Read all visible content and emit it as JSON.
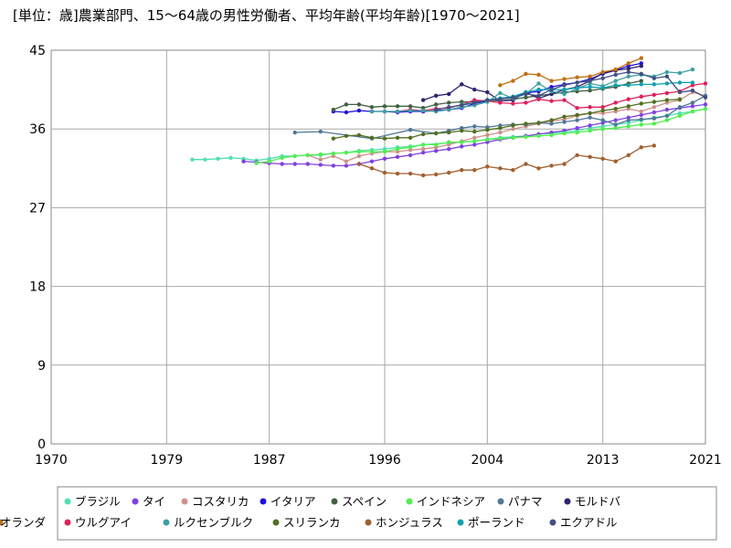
{
  "chart_data": {
    "type": "line",
    "title": "[単位：歳]農業部門、15～64歳の男性労働者、平均年齢(平均年齢)[1970～2021]",
    "xlabel": "",
    "ylabel": "",
    "xlim": [
      1970,
      2021
    ],
    "ylim": [
      0,
      45
    ],
    "x_ticks": [
      1970,
      1979,
      1987,
      1996,
      2004,
      2013,
      2021
    ],
    "y_ticks": [
      0,
      9,
      18,
      27,
      36,
      45
    ],
    "grid": true,
    "legend_position": "bottom",
    "series": [
      {
        "name": "ブラジル",
        "color": "#4fe0b0",
        "x": [
          1981,
          1982,
          1983,
          1984,
          1985,
          1986,
          1987,
          1988,
          1989,
          1990,
          1991,
          1992,
          1993,
          1994,
          1995,
          1996,
          1997,
          1998,
          1999,
          2001,
          2002,
          2003,
          2004,
          2005,
          2006,
          2007,
          2008,
          2009,
          2011,
          2012,
          2013,
          2014,
          2015,
          2016,
          2017,
          2018,
          2019,
          2020,
          2021
        ],
        "y": [
          32.5,
          32.5,
          32.6,
          32.7,
          32.6,
          32.4,
          32.6,
          32.9,
          32.9,
          33.0,
          33.0,
          33.2,
          33.3,
          33.5,
          33.6,
          33.7,
          33.9,
          34.0,
          34.2,
          34.4,
          34.5,
          34.6,
          34.8,
          35.0,
          35.1,
          35.2,
          35.4,
          35.5,
          35.8,
          36.1,
          36.3,
          36.5,
          36.7,
          37.0,
          37.3,
          37.5,
          37.8,
          38.0,
          38.3
        ]
      },
      {
        "name": "タイ",
        "color": "#8040e0",
        "x": [
          1985,
          1986,
          1987,
          1988,
          1989,
          1990,
          1991,
          1992,
          1993,
          1994,
          1995,
          1996,
          1997,
          1998,
          1999,
          2000,
          2001,
          2002,
          2003,
          2004,
          2005,
          2006,
          2007,
          2008,
          2009,
          2010,
          2011,
          2012,
          2013,
          2014,
          2015,
          2016,
          2017,
          2018,
          2019,
          2020,
          2021
        ],
        "y": [
          32.3,
          32.2,
          32.1,
          32.0,
          32.0,
          32.0,
          31.9,
          31.8,
          31.8,
          32.0,
          32.3,
          32.6,
          32.8,
          33.0,
          33.3,
          33.5,
          33.7,
          34.0,
          34.2,
          34.5,
          34.8,
          35.0,
          35.2,
          35.4,
          35.6,
          35.8,
          36.1,
          36.4,
          36.7,
          37.0,
          37.3,
          37.6,
          37.9,
          38.2,
          38.4,
          38.6,
          38.8
        ]
      },
      {
        "name": "コスタリカ",
        "color": "#d0908a",
        "x": [
          1990,
          1991,
          1992,
          1993,
          1994,
          1995,
          1996,
          1997,
          1998,
          1999,
          2000,
          2001,
          2002,
          2003,
          2004,
          2005,
          2006,
          2007,
          2008,
          2009,
          2010,
          2011,
          2012,
          2013,
          2014,
          2015,
          2016,
          2017,
          2018,
          2019,
          2020,
          2021
        ],
        "y": [
          33.0,
          32.5,
          32.9,
          32.3,
          32.9,
          33.2,
          33.4,
          33.4,
          33.6,
          33.7,
          33.9,
          34.2,
          34.6,
          35.0,
          35.3,
          35.6,
          36.0,
          36.3,
          36.6,
          36.9,
          37.1,
          37.5,
          37.8,
          37.8,
          38.0,
          38.3,
          38.0,
          38.5,
          39.0,
          39.3,
          40.2,
          39.8
        ]
      },
      {
        "name": "イタリア",
        "color": "#2010e0",
        "x": [
          1992,
          1993,
          1994,
          1995,
          1996,
          1997,
          1998,
          1999,
          2000,
          2001,
          2002,
          2003,
          2004,
          2005,
          2006,
          2007,
          2008,
          2009,
          2010,
          2011,
          2012,
          2013,
          2014,
          2015,
          2016
        ],
        "y": [
          38.0,
          37.9,
          38.1,
          38.0,
          38.0,
          37.9,
          38.0,
          38.0,
          38.1,
          38.2,
          38.4,
          38.9,
          39.2,
          39.4,
          39.6,
          40.1,
          40.3,
          40.8,
          41.1,
          41.3,
          41.7,
          42.3,
          42.7,
          43.2,
          43.5
        ]
      },
      {
        "name": "スペイン",
        "color": "#406040",
        "x": [
          1992,
          1993,
          1994,
          1995,
          1996,
          1997,
          1998,
          1999,
          2000,
          2001,
          2002,
          2003,
          2004,
          2005,
          2006,
          2007,
          2008,
          2009,
          2010,
          2011,
          2012,
          2013,
          2014,
          2015,
          2016
        ],
        "y": [
          38.2,
          38.8,
          38.8,
          38.5,
          38.6,
          38.6,
          38.6,
          38.4,
          38.8,
          39.0,
          39.1,
          39.1,
          39.3,
          39.2,
          39.4,
          39.6,
          39.8,
          40.0,
          40.2,
          40.3,
          40.4,
          40.6,
          40.8,
          41.2,
          41.5
        ]
      },
      {
        "name": "インドネシア",
        "color": "#50ee50",
        "x": [
          1986,
          1987,
          1988,
          1989,
          1990,
          1991,
          1992,
          1993,
          1994,
          1995,
          1996,
          1997,
          1998,
          1999,
          2000,
          2001,
          2002,
          2003,
          2004,
          2005,
          2006,
          2007,
          2008,
          2009,
          2010,
          2011,
          2012,
          2013,
          2014,
          2015,
          2016,
          2017,
          2018,
          2019,
          2020,
          2021
        ],
        "y": [
          32.1,
          32.3,
          32.7,
          32.9,
          33.0,
          33.1,
          33.2,
          33.3,
          33.4,
          33.4,
          33.4,
          33.7,
          33.9,
          34.2,
          34.2,
          34.5,
          34.5,
          34.6,
          34.8,
          34.9,
          35.0,
          35.1,
          35.2,
          35.3,
          35.5,
          35.6,
          35.8,
          36.0,
          36.1,
          36.3,
          36.5,
          36.6,
          37.0,
          37.5,
          38.0,
          38.3
        ]
      },
      {
        "name": "パナマ",
        "color": "#507898",
        "x": [
          1989,
          1991,
          1995,
          1998,
          2000,
          2001,
          2002,
          2003,
          2004,
          2005,
          2006,
          2007,
          2008,
          2009,
          2010,
          2011,
          2012,
          2013,
          2014,
          2015,
          2016,
          2017,
          2018,
          2019,
          2020,
          2021
        ],
        "y": [
          35.6,
          35.7,
          34.9,
          35.9,
          35.5,
          35.8,
          36.1,
          36.3,
          36.2,
          36.4,
          36.5,
          36.5,
          36.7,
          36.6,
          36.8,
          37.0,
          37.3,
          37.0,
          36.5,
          37.0,
          37.1,
          37.2,
          37.5,
          38.5,
          39.0,
          39.8
        ]
      },
      {
        "name": "モルドバ",
        "color": "#302070",
        "x": [
          1999,
          2000,
          2001,
          2002,
          2003,
          2004,
          2005,
          2006,
          2007,
          2008,
          2009,
          2010,
          2011,
          2012,
          2013,
          2014,
          2015,
          2016
        ],
        "y": [
          39.3,
          39.8,
          40.0,
          41.1,
          40.5,
          40.2,
          39.2,
          39.3,
          40.2,
          39.5,
          40.0,
          40.5,
          40.8,
          41.5,
          42.4,
          42.7,
          42.9,
          43.2
        ]
      },
      {
        "name": "ウルグアイ",
        "color": "#e0205a",
        "x": [
          1997,
          1998,
          1999,
          2000,
          2001,
          2002,
          2003,
          2004,
          2005,
          2006,
          2007,
          2008,
          2009,
          2010,
          2011,
          2012,
          2013,
          2014,
          2015,
          2016,
          2017,
          2018,
          2019,
          2020,
          2021
        ],
        "y": [
          38.0,
          38.2,
          38.1,
          38.3,
          38.4,
          38.8,
          39.3,
          39.2,
          39.0,
          38.9,
          39.0,
          39.4,
          39.2,
          39.3,
          38.4,
          38.5,
          38.5,
          39.0,
          39.4,
          39.7,
          39.9,
          40.1,
          40.3,
          41.0,
          41.2
        ]
      },
      {
        "name": "ルクセンブルク",
        "color": "#40a0a0",
        "x": [
          1995,
          1996,
          1997,
          1998,
          1999,
          2000,
          2001,
          2002,
          2003,
          2004,
          2005,
          2006,
          2007,
          2008,
          2009,
          2010,
          2011,
          2012,
          2013,
          2014,
          2015,
          2016,
          2017,
          2018,
          2019,
          2020
        ],
        "y": [
          38.0,
          38.0,
          38.0,
          38.1,
          38.1,
          38.0,
          38.2,
          38.5,
          38.7,
          39.1,
          40.1,
          39.5,
          40.0,
          41.2,
          40.3,
          40.0,
          40.6,
          41.2,
          40.9,
          41.5,
          42.0,
          42.2,
          42.0,
          42.5,
          42.4,
          42.8
        ]
      },
      {
        "name": "スリランカ",
        "color": "#507020",
        "x": [
          1992,
          1993,
          1994,
          1995,
          1996,
          1997,
          1998,
          1999,
          2000,
          2001,
          2002,
          2003,
          2004,
          2005,
          2006,
          2007,
          2008,
          2009,
          2010,
          2011,
          2012,
          2013,
          2014,
          2015,
          2016,
          2017,
          2018,
          2019
        ],
        "y": [
          34.9,
          35.2,
          35.3,
          35.0,
          34.9,
          35.0,
          35.0,
          35.4,
          35.5,
          35.6,
          35.8,
          35.7,
          35.9,
          36.1,
          36.4,
          36.6,
          36.7,
          37.0,
          37.4,
          37.6,
          37.8,
          38.1,
          38.3,
          38.6,
          38.9,
          39.1,
          39.3,
          39.4
        ]
      },
      {
        "name": "ホンジュラス",
        "color": "#a06030",
        "x": [
          1994,
          1995,
          1996,
          1997,
          1998,
          1999,
          2000,
          2001,
          2002,
          2003,
          2004,
          2005,
          2006,
          2007,
          2008,
          2009,
          2010,
          2011,
          2012,
          2013,
          2014,
          2015,
          2016,
          2017
        ],
        "y": [
          32.0,
          31.5,
          31.0,
          30.9,
          30.9,
          30.7,
          30.8,
          31.0,
          31.3,
          31.3,
          31.7,
          31.5,
          31.3,
          32.0,
          31.5,
          31.8,
          32.0,
          33.0,
          32.8,
          32.6,
          32.3,
          33.0,
          33.9,
          34.1
        ]
      },
      {
        "name": "ポーランド",
        "color": "#10a0b0",
        "x": [
          2002,
          2003,
          2004,
          2005,
          2006,
          2007,
          2008,
          2009,
          2010,
          2011,
          2012,
          2013,
          2014,
          2015,
          2016,
          2017,
          2018,
          2019,
          2020
        ],
        "y": [
          38.8,
          39.0,
          39.3,
          39.5,
          39.7,
          40.2,
          40.5,
          40.5,
          40.5,
          40.7,
          40.8,
          40.7,
          41.0,
          41.0,
          41.1,
          41.1,
          41.2,
          41.3,
          41.3
        ]
      },
      {
        "name": "エクアドル",
        "color": "#405080",
        "x": [
          2000,
          2001,
          2002,
          2003,
          2004,
          2005,
          2006,
          2007,
          2008,
          2009,
          2010,
          2011,
          2012,
          2013,
          2014,
          2015,
          2016,
          2017,
          2018,
          2019,
          2020,
          2021
        ],
        "y": [
          38.2,
          38.5,
          38.7,
          39.0,
          39.3,
          39.4,
          39.6,
          40.0,
          39.8,
          40.5,
          41.0,
          41.3,
          41.5,
          41.8,
          42.2,
          42.5,
          42.3,
          41.8,
          42.0,
          40.2,
          40.4,
          39.6
        ]
      },
      {
        "name": "オランダ",
        "color": "#c07010",
        "x": [
          2005,
          2006,
          2007,
          2008,
          2009,
          2010,
          2011,
          2012,
          2013,
          2014,
          2015,
          2016
        ],
        "y": [
          41.0,
          41.5,
          42.3,
          42.2,
          41.5,
          41.7,
          41.9,
          42.0,
          42.5,
          42.8,
          43.5,
          44.1
        ]
      }
    ]
  }
}
